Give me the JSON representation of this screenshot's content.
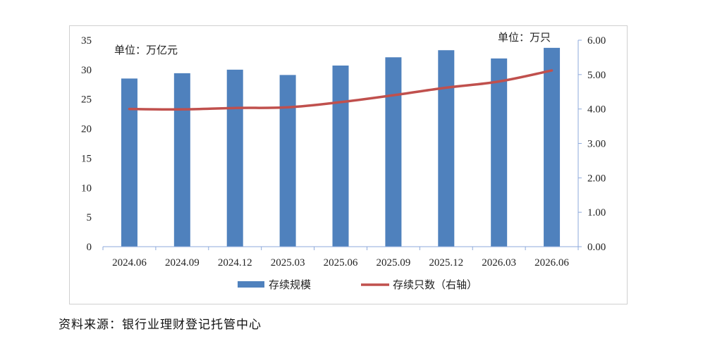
{
  "chart_data": {
    "type": "bar",
    "categories": [
      "2024.06",
      "2024.09",
      "2024.12",
      "2025.03",
      "2025.06",
      "2025.09",
      "2025.12",
      "2026.03",
      "2026.06"
    ],
    "series": [
      {
        "name": "存续规模",
        "type": "bar",
        "axis": "left",
        "color": "#4f81bd",
        "values": [
          28.5,
          29.4,
          30.0,
          29.1,
          30.7,
          32.1,
          33.3,
          31.9,
          33.7
        ]
      },
      {
        "name": "存续只数（右轴）",
        "type": "line",
        "axis": "right",
        "color": "#c0504d",
        "values": [
          4.0,
          3.99,
          4.03,
          4.05,
          4.2,
          4.4,
          4.62,
          4.8,
          5.12
        ]
      }
    ],
    "y_left": {
      "ylim": [
        0,
        35
      ],
      "ticks": [
        "0",
        "5",
        "10",
        "15",
        "20",
        "25",
        "30",
        "35"
      ],
      "unit": "单位：万亿元"
    },
    "y_right": {
      "ylim": [
        0,
        6
      ],
      "ticks": [
        "0.00",
        "1.00",
        "2.00",
        "3.00",
        "4.00",
        "5.00",
        "6.00"
      ],
      "unit": "单位：万只"
    },
    "legend_position": "bottom",
    "grid": false
  },
  "source_note": "资料来源：银行业理财登记托管中心"
}
